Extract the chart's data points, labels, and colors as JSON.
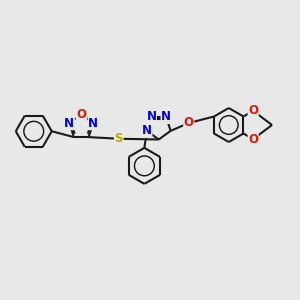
{
  "background_color": "#e8e8e8",
  "bond_color": "#1a1a1a",
  "bond_width": 1.5,
  "atom_colors": {
    "N": "#0000ee",
    "O": "#ee1100",
    "S": "#bbaa00",
    "C": "#1a1a1a"
  },
  "font_size": 8.5,
  "layout": {
    "xlim": [
      0,
      12
    ],
    "ylim": [
      0,
      9
    ]
  }
}
